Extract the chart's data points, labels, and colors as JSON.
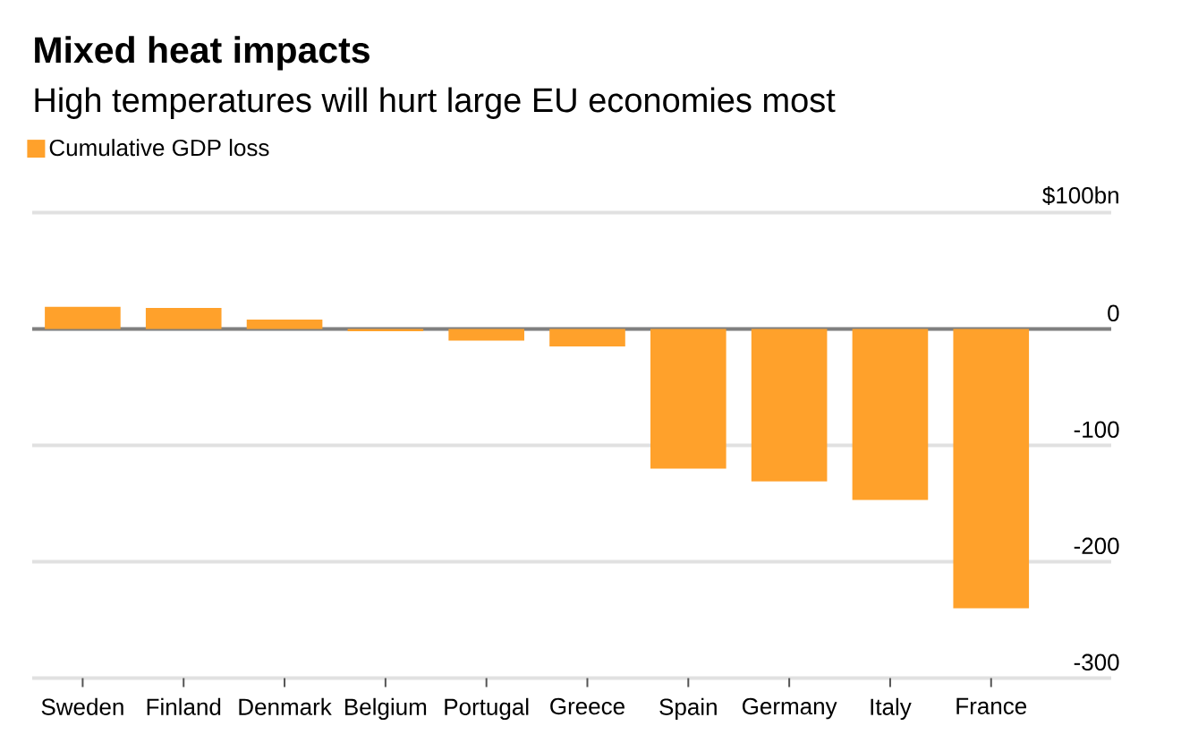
{
  "chart_data": {
    "type": "bar",
    "title": "Mixed heat impacts",
    "subtitle": "High temperatures will hurt large EU economies most",
    "categories": [
      "Sweden",
      "Finland",
      "Denmark",
      "Belgium",
      "Portugal",
      "Greece",
      "Spain",
      "Germany",
      "Italy",
      "France"
    ],
    "series": [
      {
        "name": "Cumulative GDP loss",
        "color": "#ffa12b",
        "values": [
          19,
          18,
          8,
          -2,
          -10,
          -15,
          -120,
          -131,
          -147,
          -240
        ]
      }
    ],
    "ylim": [
      -300,
      100
    ],
    "yticks": [
      -300,
      -200,
      -100,
      0,
      {
        "value": 100,
        "label": "$100bn"
      }
    ],
    "grid": "y",
    "legend": "top left"
  }
}
